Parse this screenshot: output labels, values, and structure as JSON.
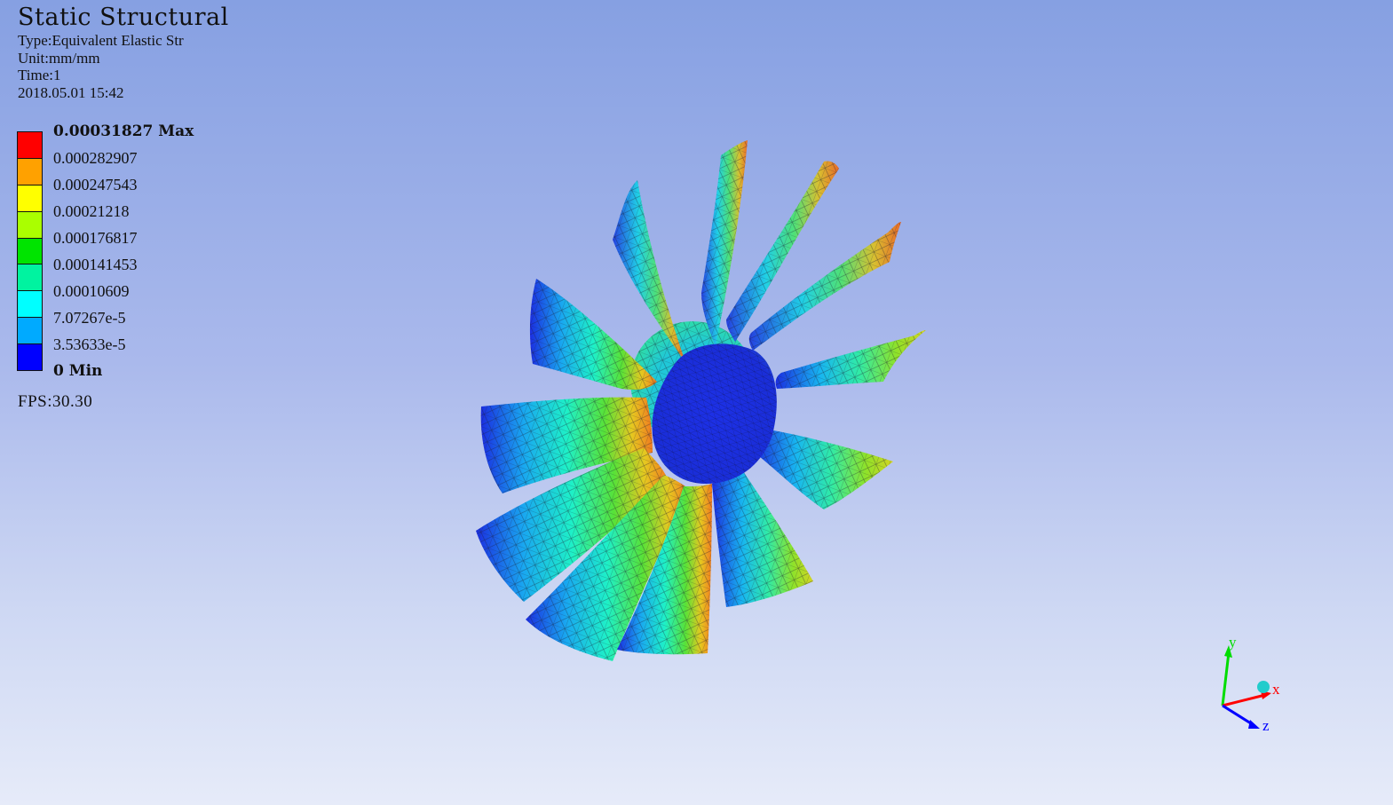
{
  "header": {
    "title": "Static Structural",
    "type_line": "Type:Equivalent Elastic Str",
    "unit_line": "Unit:mm/mm",
    "time_line": "Time:1",
    "datetime": "2018.05.01 15:42"
  },
  "legend": {
    "labels": [
      "0.00031827 Max",
      "0.000282907",
      "0.000247543",
      "0.00021218",
      "0.000176817",
      "0.000141453",
      "0.00010609",
      "7.07267e-5",
      "3.53633e-5",
      "0 Min"
    ],
    "colors": [
      "#ff0000",
      "#ffa100",
      "#ffff00",
      "#aaff00",
      "#00e400",
      "#00f3a0",
      "#00ffff",
      "#00aaff",
      "#0000ff"
    ]
  },
  "fps": "FPS:30.30",
  "triad": {
    "x_label": "x",
    "y_label": "y",
    "z_label": "z",
    "colors": {
      "x": "#ff0000",
      "y": "#00dd00",
      "z": "#0000ff",
      "origin": "#22cccc"
    }
  },
  "viewport": {
    "model": "bladed-impeller-mesh",
    "hub_color": "#1a2fe0",
    "mesh_line_color": "#222222"
  }
}
